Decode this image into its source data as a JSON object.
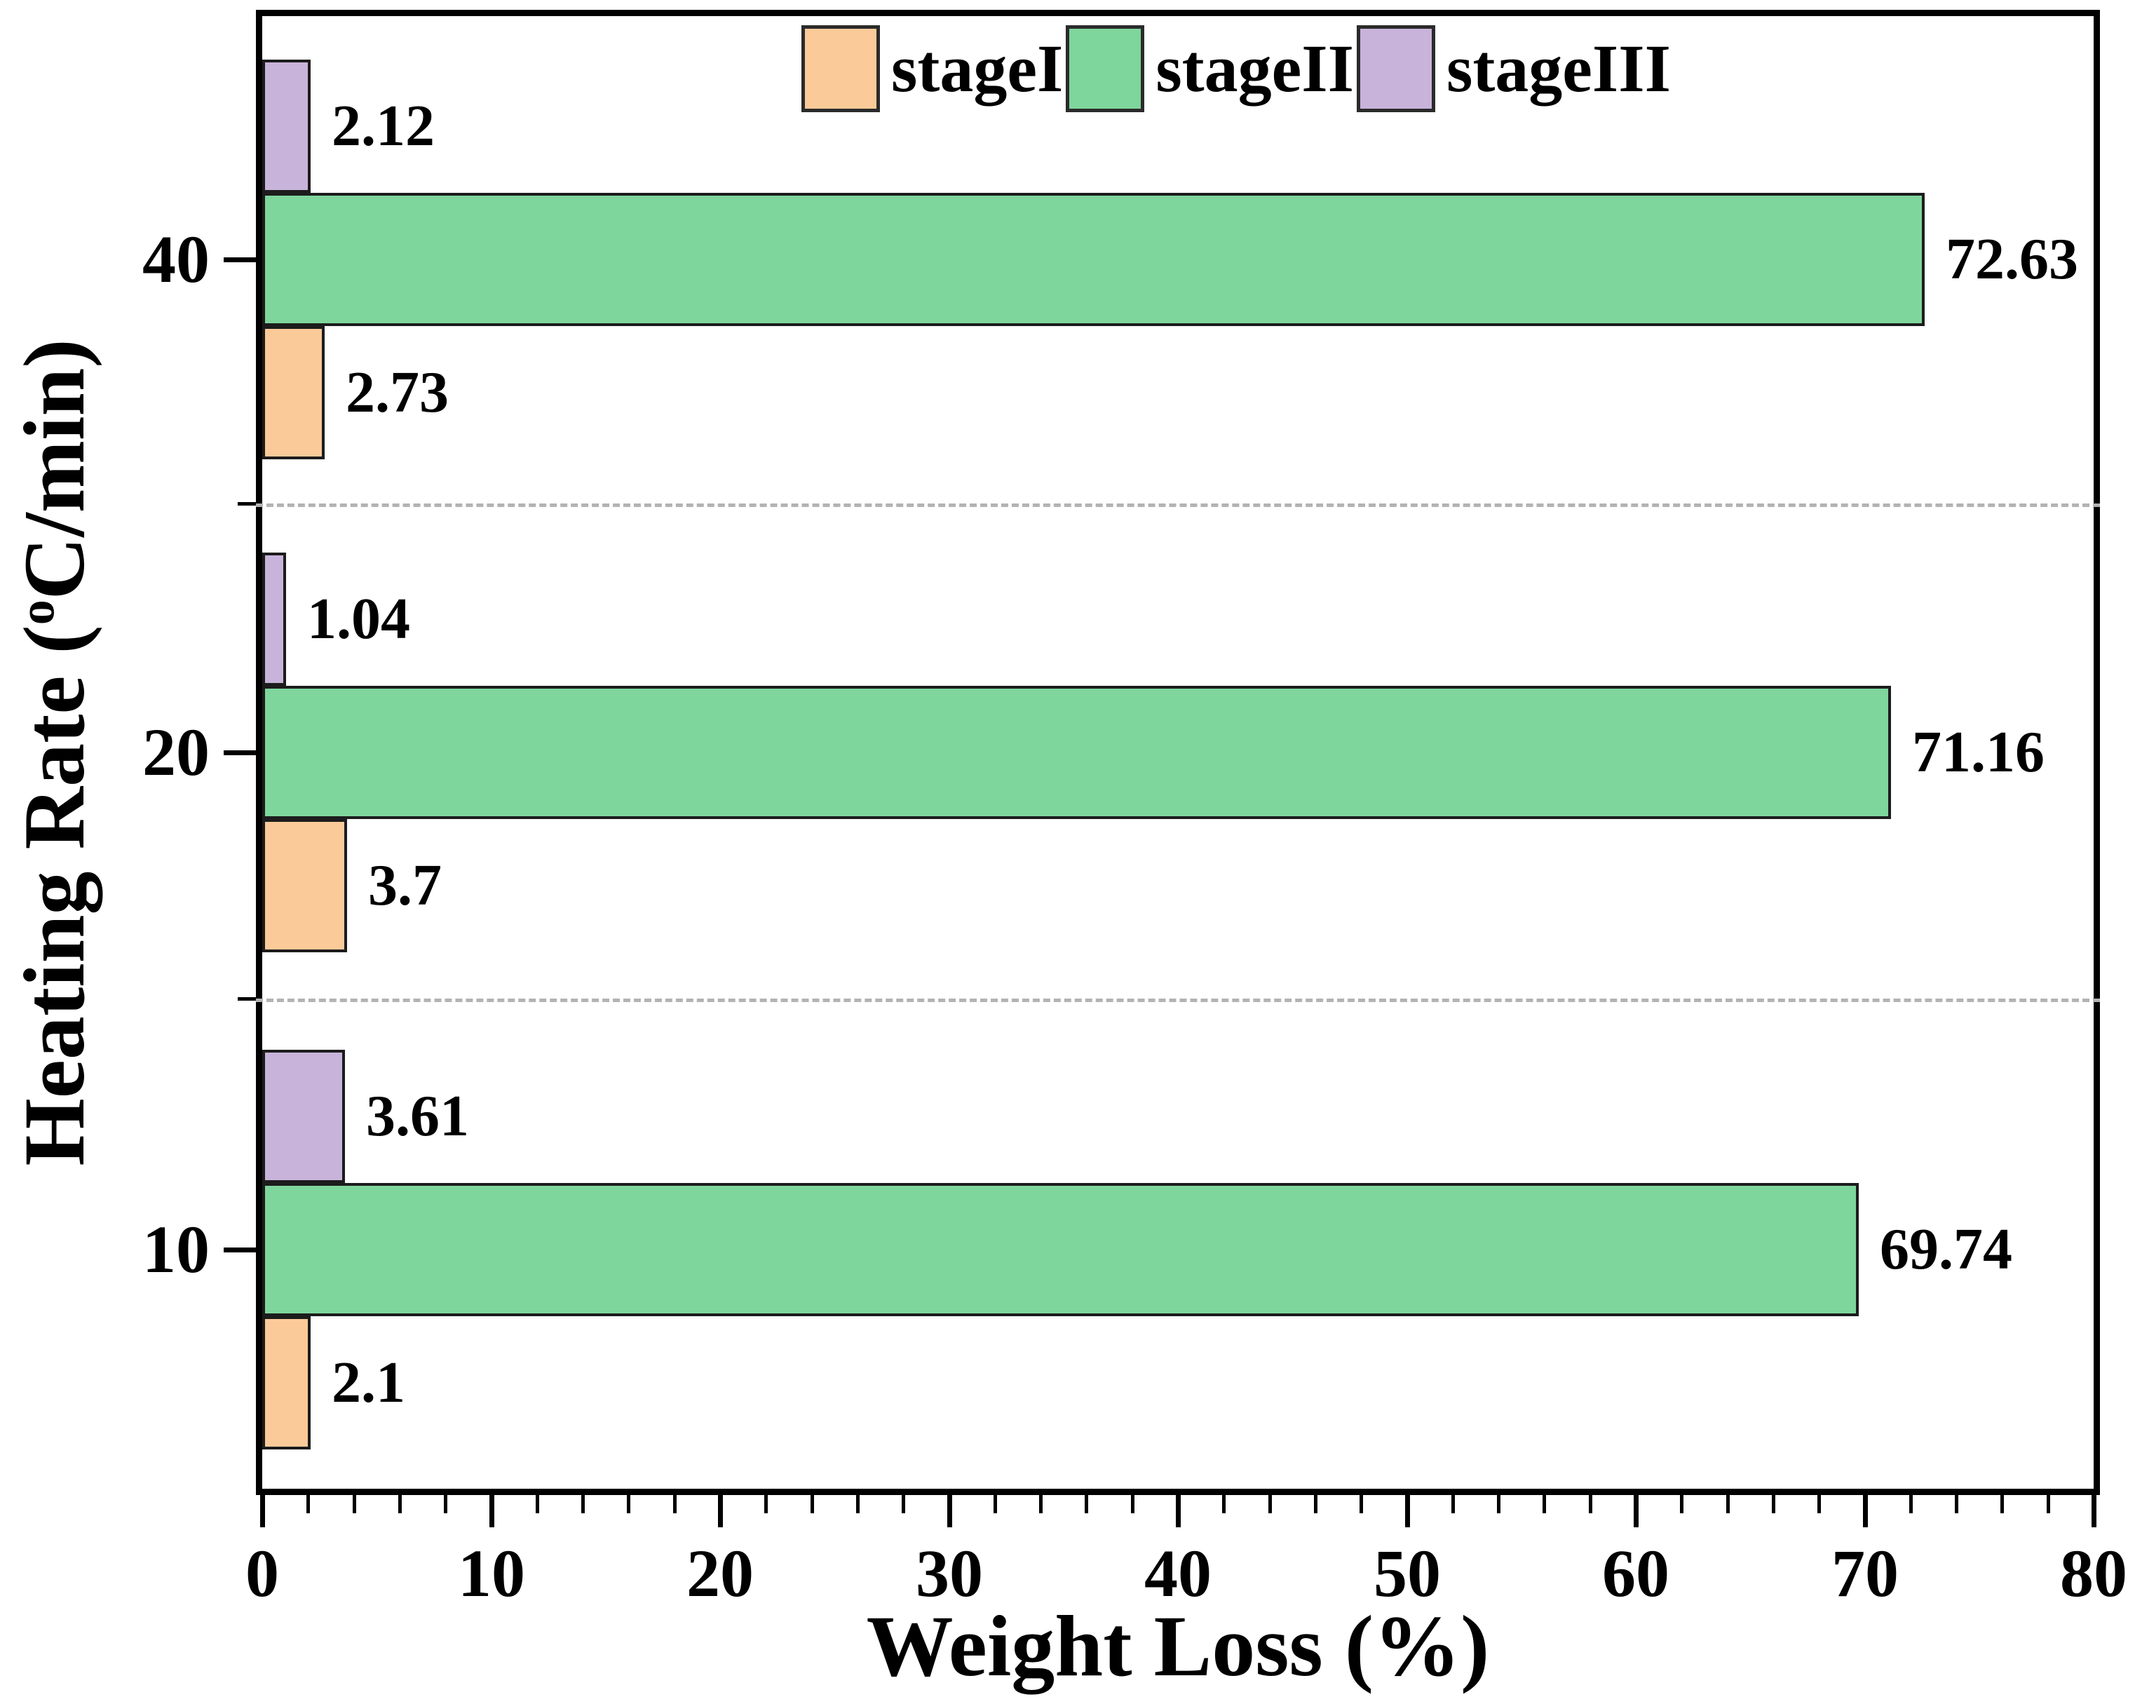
{
  "figure": {
    "x_axis_title": "Weight Loss (%)",
    "y_axis_title_prefix": "Heating Rate (",
    "y_axis_title_sup": "o",
    "y_axis_title_suffix": "C/min)"
  },
  "chart_data": {
    "type": "bar",
    "orientation": "horizontal",
    "title": "",
    "xlabel": "Weight Loss (%)",
    "ylabel": "Heating Rate (°C/min)",
    "xlim": [
      0,
      80
    ],
    "x_major_tick_labels": [
      "0",
      "10",
      "20",
      "30",
      "40",
      "50",
      "60",
      "70",
      "80"
    ],
    "x_major_tick_step": 10,
    "x_minor_tick_step": 2,
    "categories": [
      "40",
      "20",
      "10"
    ],
    "legend_position": "top-center",
    "legend": [
      "stageI",
      "stageII",
      "stageIII"
    ],
    "grid": "dashed gray separators between category groups",
    "bar_order_top_to_bottom": [
      "stageIII",
      "stageII",
      "stageI"
    ],
    "series": [
      {
        "name": "stageI",
        "color": "#fbca99",
        "values": [
          2.73,
          3.7,
          2.1
        ],
        "labels": [
          "2.73",
          "3.7",
          "2.1"
        ]
      },
      {
        "name": "stageII",
        "color": "#7ed69c",
        "values": [
          72.63,
          71.16,
          69.74
        ],
        "labels": [
          "72.63",
          "71.16",
          "69.74"
        ]
      },
      {
        "name": "stageIII",
        "color": "#c8b3da",
        "values": [
          2.12,
          1.04,
          3.61
        ],
        "labels": [
          "2.12",
          "1.04",
          "3.61"
        ]
      }
    ]
  },
  "colors": {
    "stageI": "#fbca99",
    "stageII": "#7ed69c",
    "stageIII": "#c8b3da",
    "bar_border": "#1c1c1c",
    "axis": "#000000",
    "separator": "#b3b3b3",
    "background": "#ffffff"
  }
}
